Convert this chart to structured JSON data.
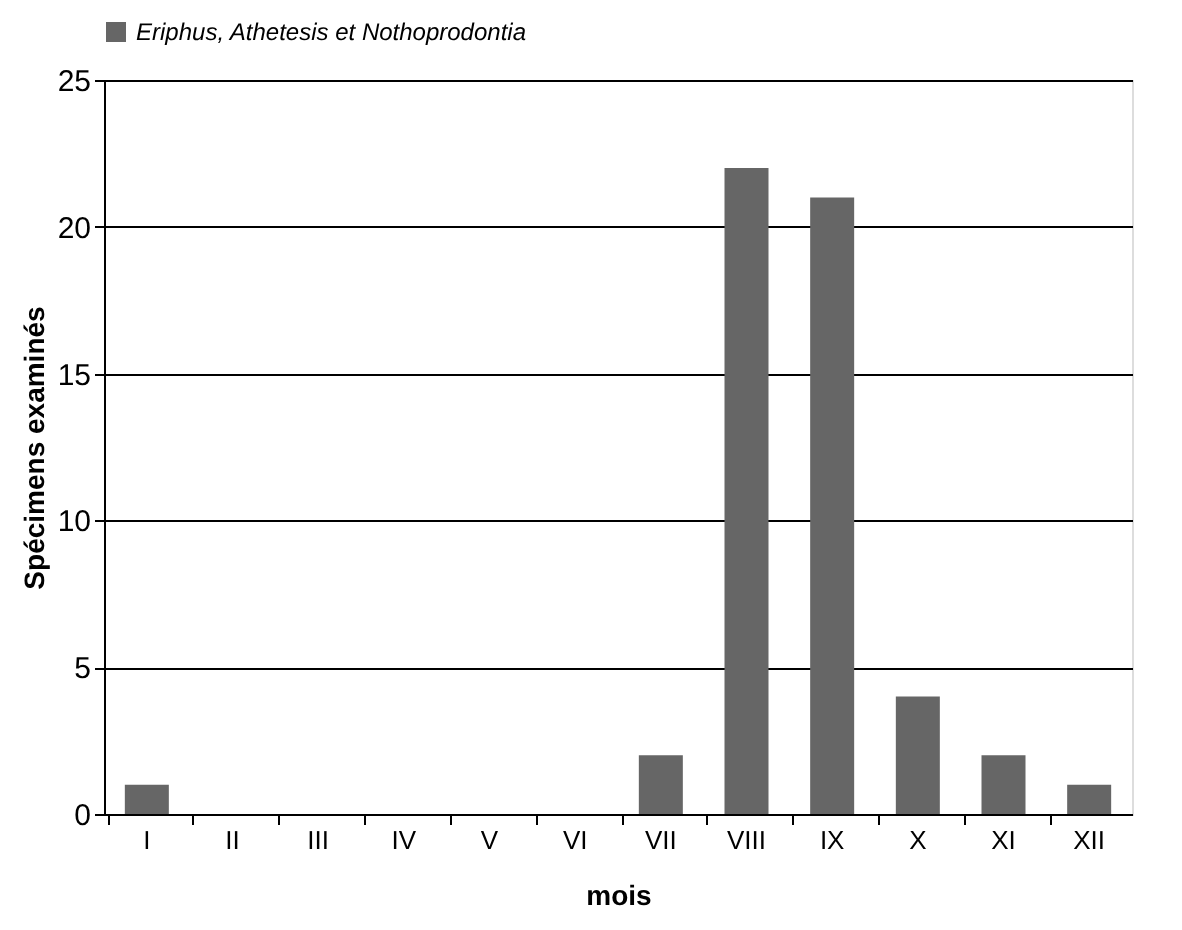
{
  "chart_data": {
    "type": "bar",
    "xlabel": "mois",
    "ylabel": "Spécimens examinés",
    "categories": [
      "I",
      "II",
      "III",
      "IV",
      "V",
      "VI",
      "VII",
      "VIII",
      "IX",
      "X",
      "XI",
      "XII"
    ],
    "series": [
      {
        "name": "Eriphus, Athetesis et Nothoprodontia",
        "color": "#666666",
        "values": [
          1,
          0,
          0,
          0,
          0,
          0,
          2,
          22,
          21,
          4,
          2,
          1
        ]
      }
    ],
    "ylim": [
      0,
      25
    ],
    "yticks": [
      0,
      5,
      10,
      15,
      20,
      25
    ],
    "grid": "y",
    "legend": "top"
  }
}
